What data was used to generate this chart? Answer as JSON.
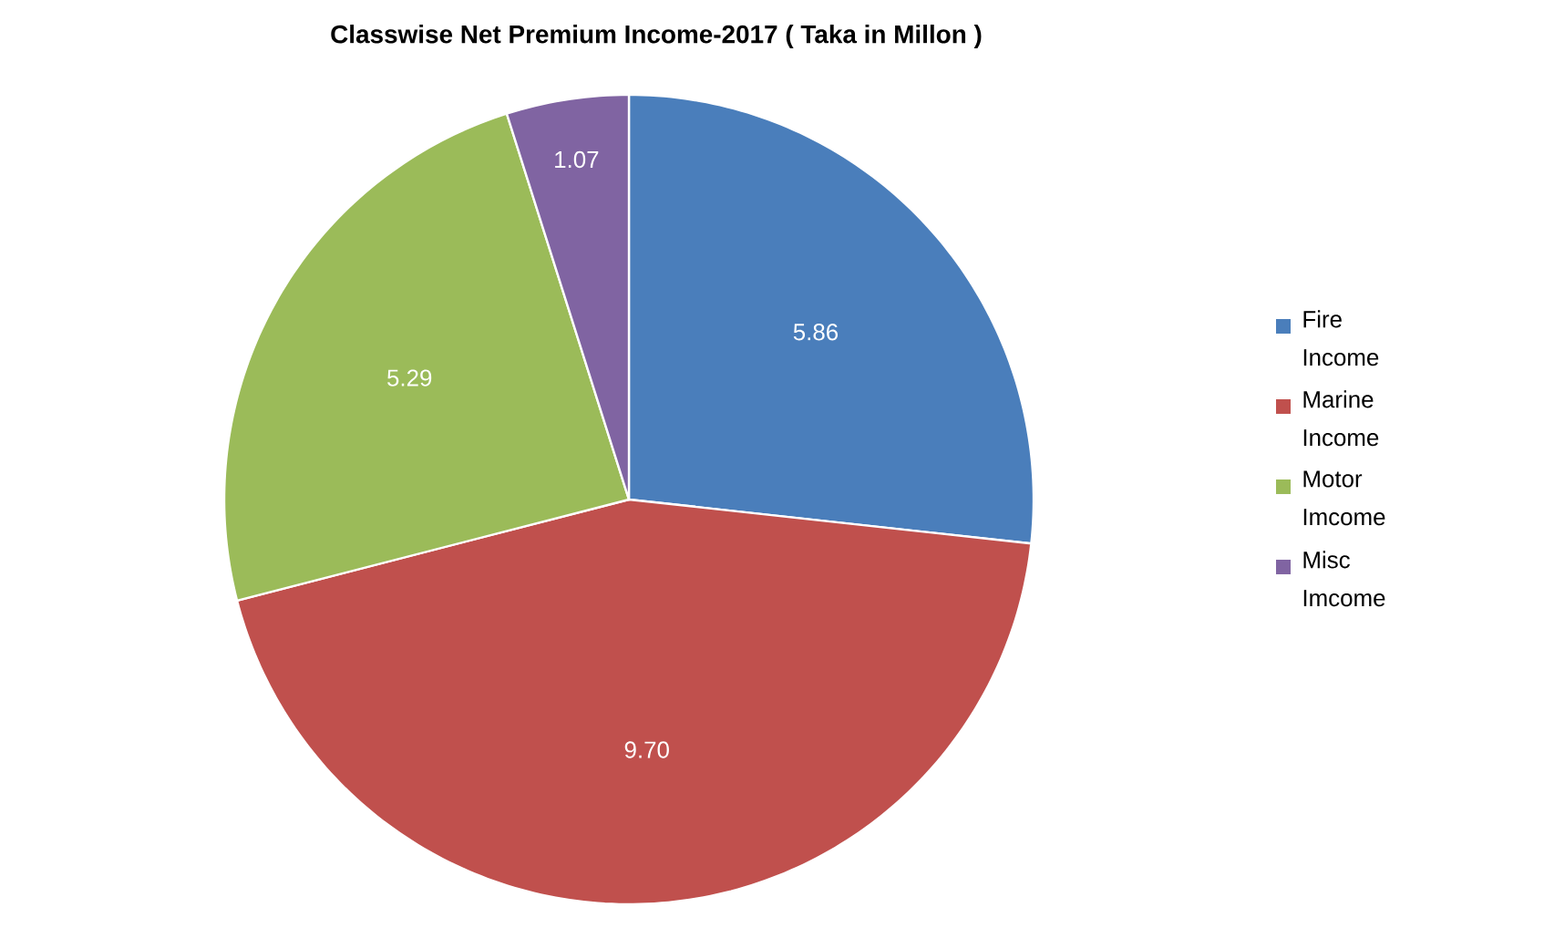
{
  "chart_data": {
    "type": "pie",
    "title": "Classwise Net Premium Income-2017 ( Taka in Millon )",
    "categories": [
      "Fire Income",
      "Marine Income",
      "Motor Imcome",
      "Misc Imcome"
    ],
    "values": [
      5.86,
      9.7,
      5.29,
      1.07
    ],
    "colors": [
      "#4a7ebb",
      "#c0504d",
      "#9bbb59",
      "#8064a2"
    ],
    "value_labels": [
      "5.86",
      "9.70",
      "5.29",
      "1.07"
    ],
    "legend": "right"
  }
}
